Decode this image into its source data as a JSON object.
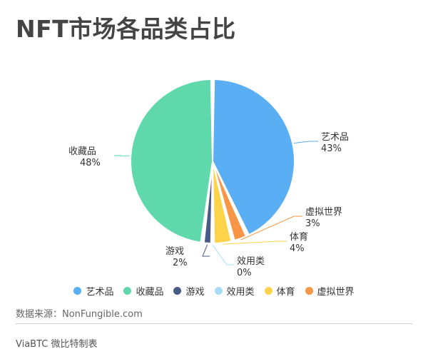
{
  "title": "NFT市场各品类占比",
  "source": "数据来源：NonFungible.com",
  "footer": "ViaBTC 微比特制表",
  "chart_data": {
    "type": "pie",
    "series": [
      {
        "name": "艺术品",
        "value": 43,
        "label": "43%",
        "color": "#5aaef3"
      },
      {
        "name": "虚拟世界",
        "value": 3,
        "label": "3%",
        "color": "#f79646"
      },
      {
        "name": "体育",
        "value": 4,
        "label": "4%",
        "color": "#fdd449"
      },
      {
        "name": "效用类",
        "value": 0,
        "label": "0%",
        "color": "#a9dcf7"
      },
      {
        "name": "游戏",
        "value": 2,
        "label": "2%",
        "color": "#4a5a87"
      },
      {
        "name": "收藏品",
        "value": 48,
        "label": "48%",
        "color": "#5fd8ac"
      }
    ],
    "legend": {
      "placement": "bottom",
      "items": [
        {
          "name": "艺术品",
          "color": "#5aaef3"
        },
        {
          "name": "收藏品",
          "color": "#5fd8ac"
        },
        {
          "name": "游戏",
          "color": "#4a5a87"
        },
        {
          "name": "效用类",
          "color": "#a9dcf7"
        },
        {
          "name": "体育",
          "color": "#fdd449"
        },
        {
          "name": "虚拟世界",
          "color": "#f79646"
        }
      ]
    }
  }
}
